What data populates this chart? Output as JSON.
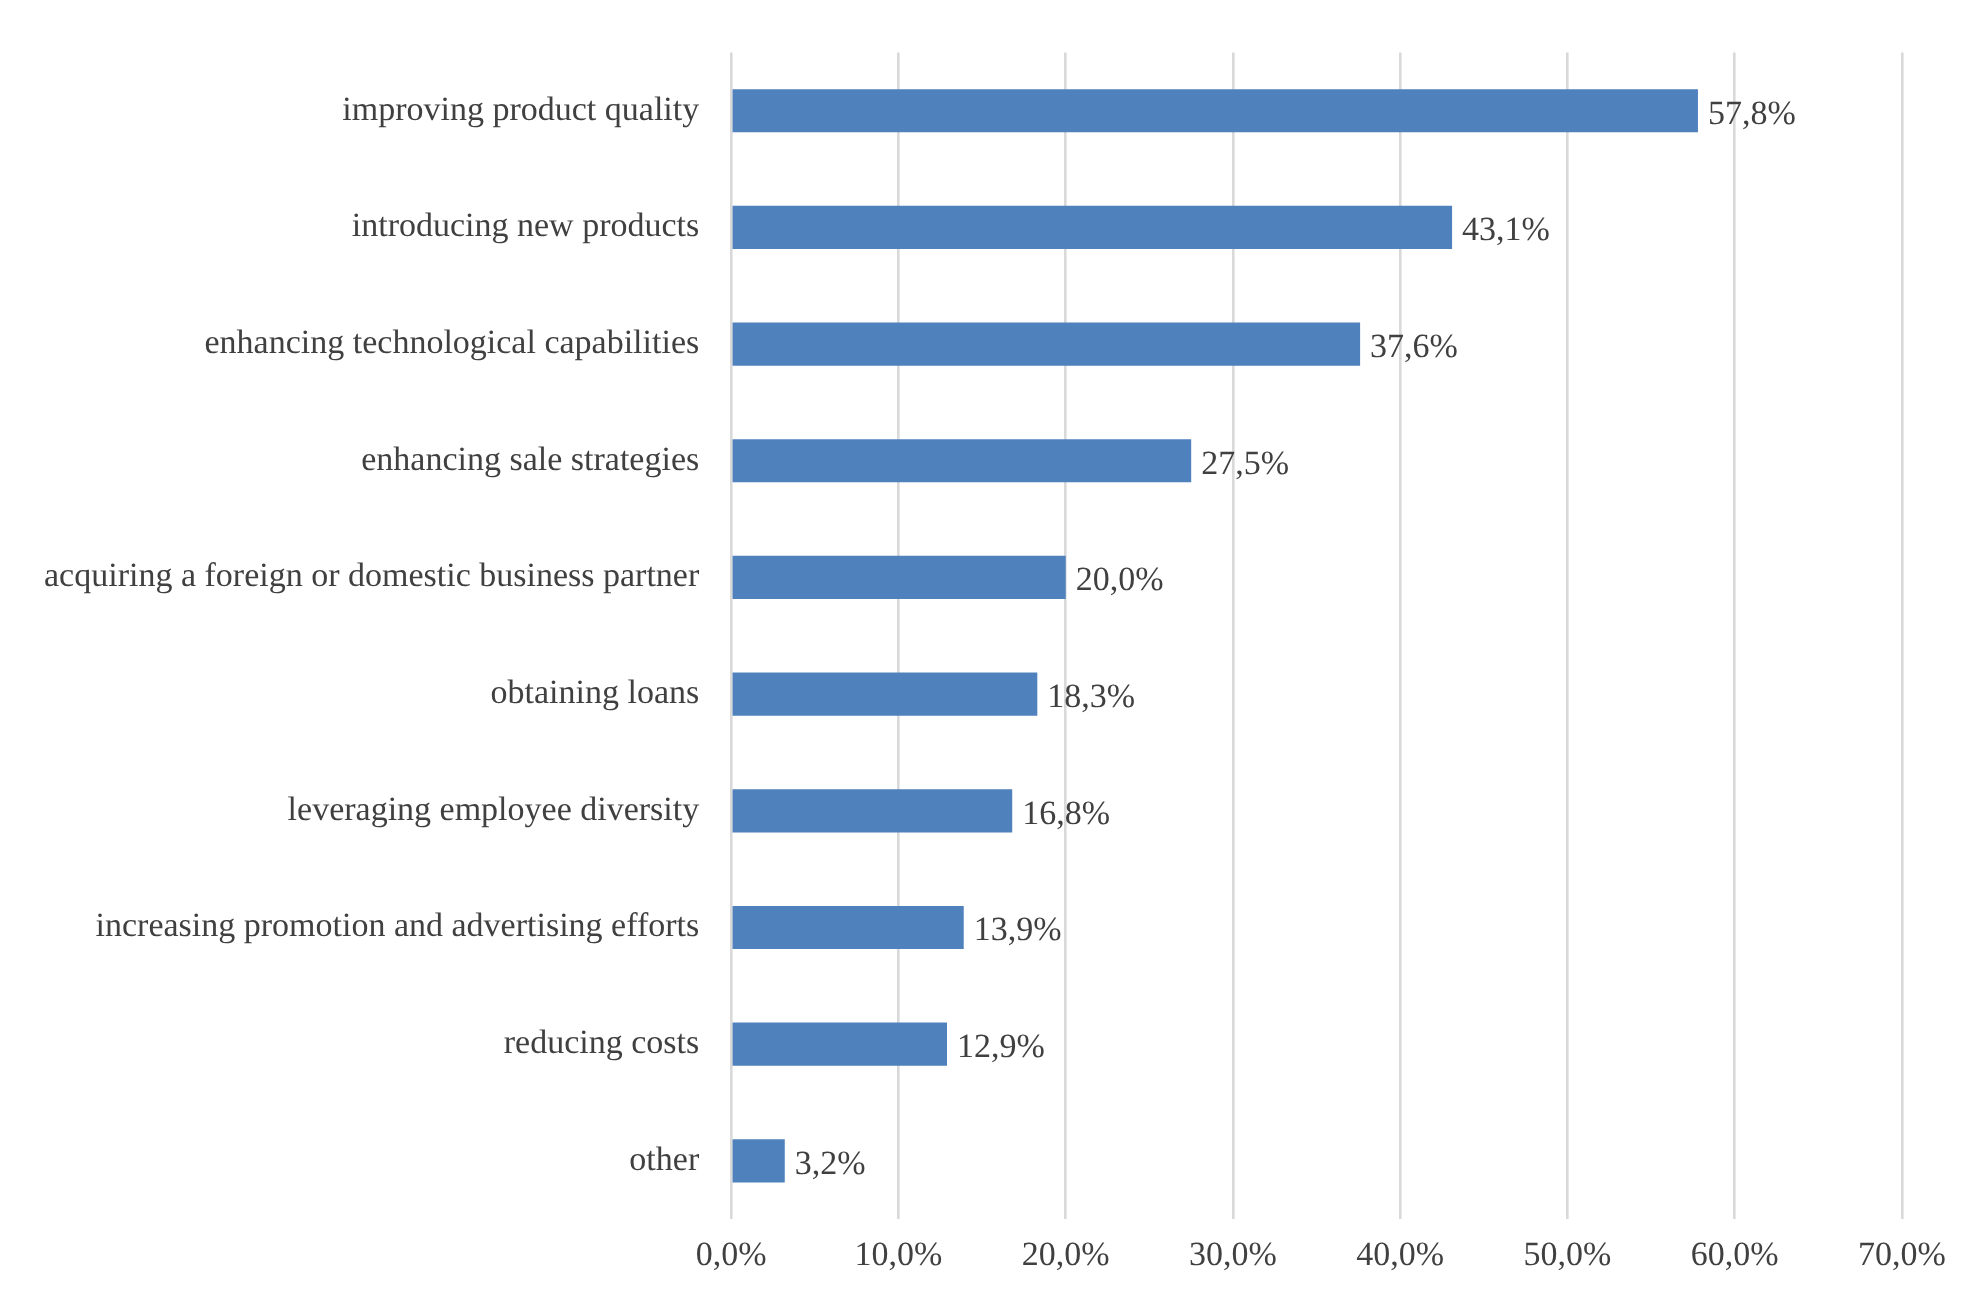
{
  "chart_data": {
    "type": "bar",
    "orientation": "horizontal",
    "categories": [
      "improving product quality",
      "introducing new products",
      "enhancing technological capabilities",
      "enhancing sale strategies",
      "acquiring a foreign or domestic business partner",
      "obtaining loans",
      "leveraging employee diversity",
      "increasing promotion and advertising efforts",
      "reducing costs",
      "other"
    ],
    "values": [
      57.8,
      43.1,
      37.6,
      27.5,
      20.0,
      18.3,
      16.8,
      13.9,
      12.9,
      3.2
    ],
    "value_labels": [
      "57,8%",
      "43,1%",
      "37,6%",
      "27,5%",
      "20,0%",
      "18,3%",
      "16,8%",
      "13,9%",
      "12,9%",
      "3,2%"
    ],
    "color": "#4f81bd",
    "xlim": [
      0,
      70
    ],
    "xticks": [
      {
        "value": 0,
        "label": "0,0%"
      },
      {
        "value": 10,
        "label": "10,0%"
      },
      {
        "value": 20,
        "label": "20,0%"
      },
      {
        "value": 30,
        "label": "30,0%"
      },
      {
        "value": 40,
        "label": "40,0%"
      },
      {
        "value": 50,
        "label": "50,0%"
      },
      {
        "value": 60,
        "label": "60,0%"
      },
      {
        "value": 70,
        "label": "70,0%"
      }
    ],
    "grid": "x",
    "legend": false
  }
}
